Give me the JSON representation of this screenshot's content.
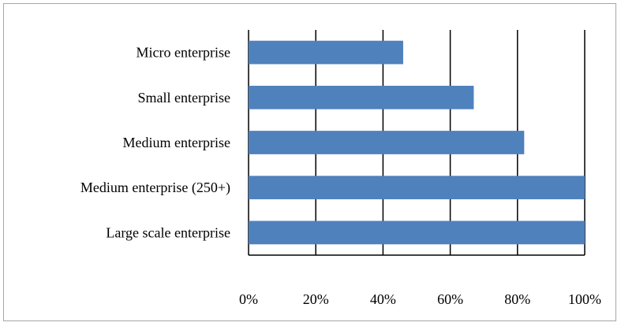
{
  "chart_data": {
    "type": "bar",
    "orientation": "horizontal",
    "categories": [
      "Micro enterprise",
      "Small enterprise",
      "Medium enterprise",
      "Medium enterprise (250+)",
      "Large scale enterprise"
    ],
    "values": [
      46,
      67,
      82,
      100,
      100
    ],
    "xlim": [
      0,
      100
    ],
    "x_ticks": [
      "0%",
      "20%",
      "40%",
      "60%",
      "80%",
      "100%"
    ],
    "grid": true,
    "bar_color": "#4f81bd",
    "title": "",
    "xlabel": "",
    "ylabel": ""
  }
}
